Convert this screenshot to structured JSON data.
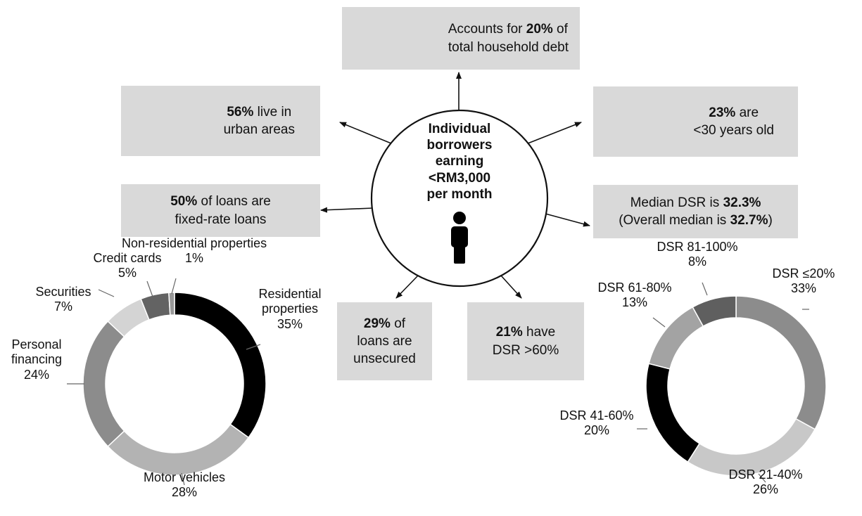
{
  "hub": {
    "title_lines": [
      "Individual",
      "borrowers",
      "earning",
      "<RM3,000",
      "per month"
    ],
    "icon": "person-icon"
  },
  "facts": {
    "debt_share": {
      "pre": "Accounts for ",
      "bold": "20%",
      "post": " of",
      "line2": "total household debt",
      "icon": "credit-card-icon"
    },
    "urban": {
      "bold": "56%",
      "post": " live in",
      "line2": "urban areas",
      "icon": "city-buildings-icon"
    },
    "young": {
      "bold": "23%",
      "post": " are",
      "line2": "<30 years old",
      "icon": "businessman-icon"
    },
    "fixed_rate": {
      "bold": "50%",
      "post": " of loans are",
      "line2": "fixed-rate loans"
    },
    "median_dsr": {
      "pre": "Median DSR is ",
      "bold": "32.3%",
      "line2_pre": "(Overall median is ",
      "line2_bold": "32.7%",
      "line2_post": ")"
    },
    "unsecured": {
      "bold": "29%",
      "post": " of",
      "line2": "loans are",
      "line3": "unsecured"
    },
    "high_dsr": {
      "bold": "21%",
      "post": " have",
      "line2": "DSR >60%"
    }
  },
  "chart_data": [
    {
      "type": "pie",
      "subtype": "donut",
      "title": "",
      "slices": [
        {
          "label": "Residential properties",
          "label_lines": [
            "Residential",
            "properties"
          ],
          "pct_text": "35%",
          "value": 35,
          "color": "#000000"
        },
        {
          "label": "Motor vehicles",
          "label_lines": [
            "Motor vehicles"
          ],
          "pct_text": "28%",
          "value": 28,
          "color": "#b3b3b3"
        },
        {
          "label": "Personal financing",
          "label_lines": [
            "Personal",
            "financing"
          ],
          "pct_text": "24%",
          "value": 24,
          "color": "#8c8c8c"
        },
        {
          "label": "Securities",
          "label_lines": [
            "Securities"
          ],
          "pct_text": "7%",
          "value": 7,
          "color": "#d4d4d4"
        },
        {
          "label": "Credit cards",
          "label_lines": [
            "Credit cards"
          ],
          "pct_text": "5%",
          "value": 5,
          "color": "#636363"
        },
        {
          "label": "Non-residential properties",
          "label_lines": [
            "Non-residential properties"
          ],
          "pct_text": "1%",
          "value": 1,
          "color": "#999999"
        }
      ]
    },
    {
      "type": "pie",
      "subtype": "donut",
      "title": "",
      "slices": [
        {
          "label": "DSR ≤20%",
          "label_lines": [
            "DSR ≤20%"
          ],
          "pct_text": "33%",
          "value": 33,
          "color": "#8c8c8c"
        },
        {
          "label": "DSR 21-40%",
          "label_lines": [
            "DSR 21-40%"
          ],
          "pct_text": "26%",
          "value": 26,
          "color": "#c8c8c8"
        },
        {
          "label": "DSR 41-60%",
          "label_lines": [
            "DSR 41-60%"
          ],
          "pct_text": "20%",
          "value": 20,
          "color": "#000000"
        },
        {
          "label": "DSR 61-80%",
          "label_lines": [
            "DSR 61-80%"
          ],
          "pct_text": "13%",
          "value": 13,
          "color": "#a3a3a3"
        },
        {
          "label": "DSR 81-100%",
          "label_lines": [
            "DSR 81-100%"
          ],
          "pct_text": "8%",
          "value": 8,
          "color": "#5f5f5f"
        }
      ]
    }
  ]
}
